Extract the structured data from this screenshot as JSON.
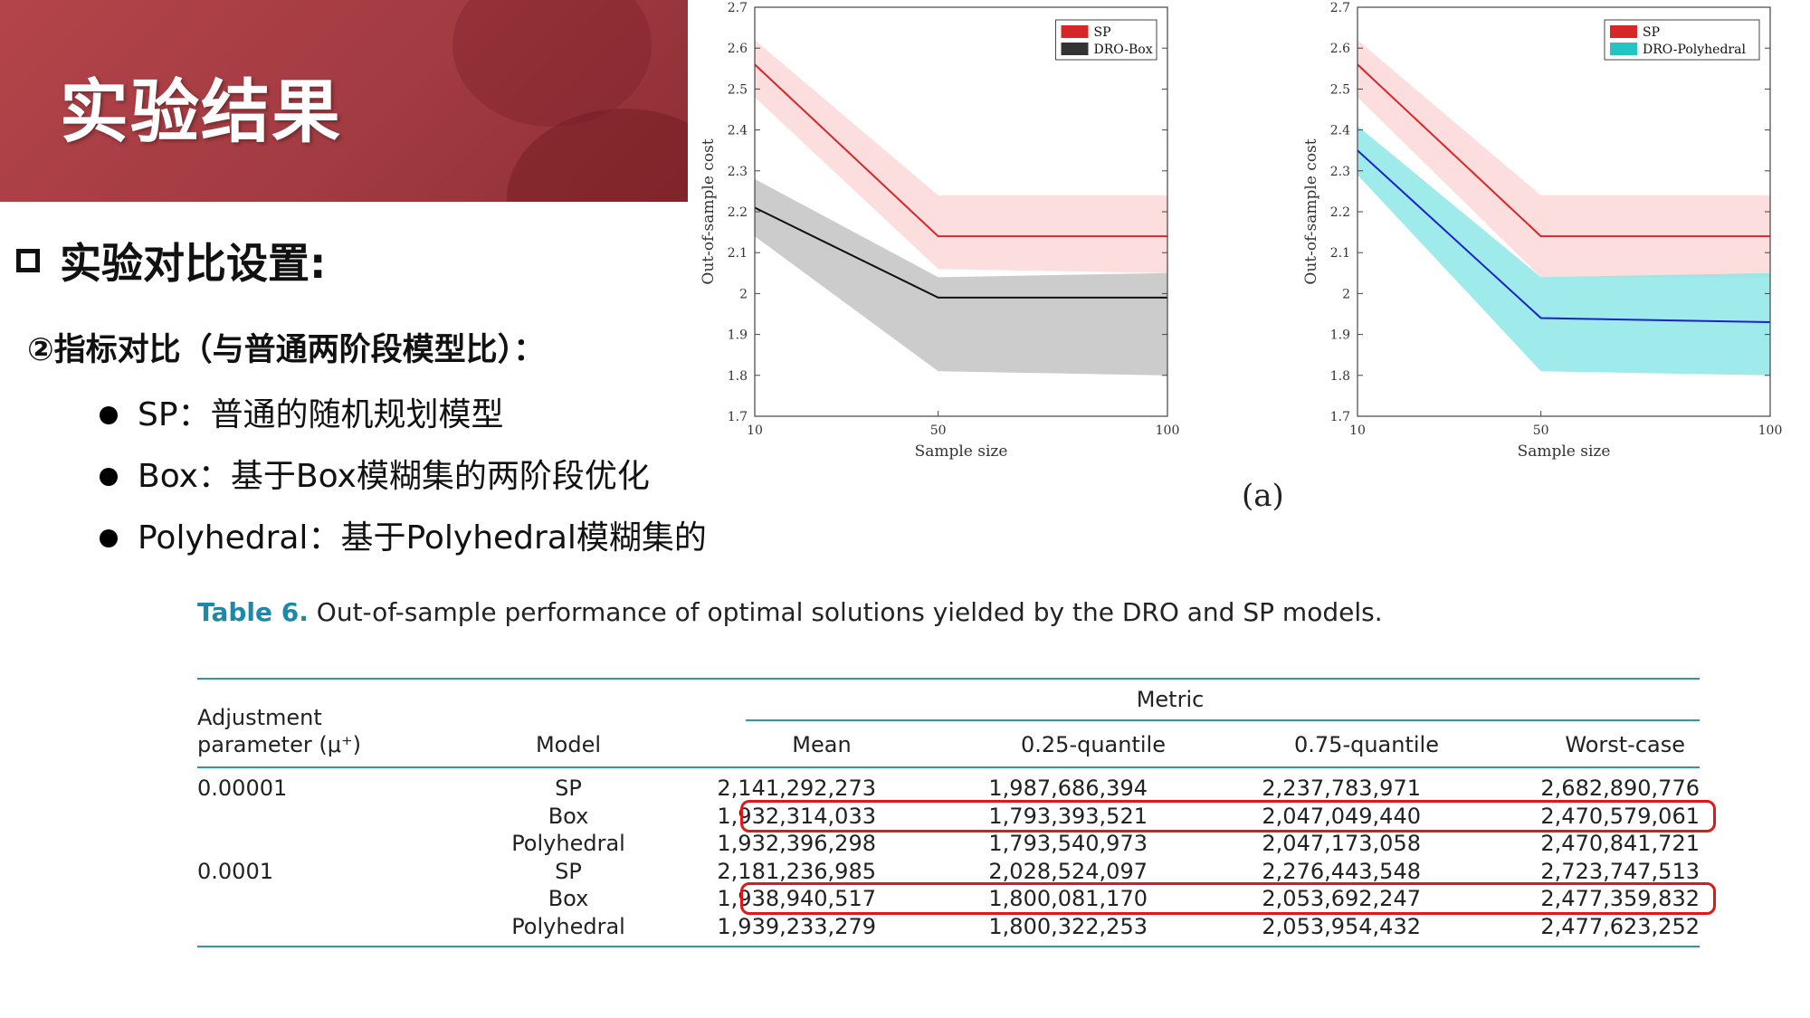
{
  "header": {
    "title": "实验结果"
  },
  "section": {
    "title": "实验对比设置:",
    "subtitle": "②指标对比（与普通两阶段模型比）：",
    "bullets": [
      "SP：普通的随机规划模型",
      "Box：基于Box模糊集的两阶段优化",
      "Polyhedral：基于Polyhedral模糊集的"
    ]
  },
  "figure_caption": "(a)",
  "colors": {
    "banner": "#a63c43",
    "sp_line": "#d62728",
    "sp_band": "#fcdede",
    "box_line": "#111111",
    "box_band": "#c3c3c3",
    "poly_line": "#1a22cc",
    "poly_band": "#8ee6e6",
    "table_rule": "#2a9aa5",
    "highlight": "#e01818"
  },
  "chart_data": [
    {
      "type": "area",
      "xlabel": "Sample size",
      "ylabel": "Out-of-sample cost",
      "x": [
        10,
        50,
        100
      ],
      "xticks": [
        "10",
        "50",
        "100"
      ],
      "yticks": [
        "1.7",
        "1.8",
        "1.9",
        "2",
        "2.1",
        "2.2",
        "2.3",
        "2.4",
        "2.5",
        "2.6",
        "2.7"
      ],
      "ylim": [
        1.7,
        2.7
      ],
      "legend_position": "top-right",
      "series": [
        {
          "name": "SP",
          "mean": [
            2.56,
            2.14,
            2.14
          ],
          "low": [
            2.48,
            2.06,
            2.05
          ],
          "high": [
            2.62,
            2.24,
            2.24
          ],
          "line_color": "#d62728",
          "band_color": "#fcdede"
        },
        {
          "name": "DRO-Box",
          "mean": [
            2.21,
            1.99,
            1.99
          ],
          "low": [
            2.14,
            1.81,
            1.8
          ],
          "high": [
            2.28,
            2.04,
            2.05
          ],
          "line_color": "#111111",
          "band_color": "#c3c3c3"
        }
      ]
    },
    {
      "type": "area",
      "xlabel": "Sample size",
      "ylabel": "Out-of-sample cost",
      "x": [
        10,
        50,
        100
      ],
      "xticks": [
        "10",
        "50",
        "100"
      ],
      "yticks": [
        "1.7",
        "1.8",
        "1.9",
        "2",
        "2.1",
        "2.2",
        "2.3",
        "2.4",
        "2.5",
        "2.6",
        "2.7"
      ],
      "ylim": [
        1.7,
        2.7
      ],
      "legend_position": "top-right",
      "series": [
        {
          "name": "SP",
          "mean": [
            2.56,
            2.14,
            2.14
          ],
          "low": [
            2.48,
            2.04,
            2.04
          ],
          "high": [
            2.62,
            2.24,
            2.24
          ],
          "line_color": "#d62728",
          "band_color": "#fcdede"
        },
        {
          "name": "DRO-Polyhedral",
          "mean": [
            2.35,
            1.94,
            1.93
          ],
          "low": [
            2.29,
            1.81,
            1.8
          ],
          "high": [
            2.41,
            2.04,
            2.05
          ],
          "line_color": "#1a22cc",
          "band_color": "#8ee6e6"
        }
      ]
    }
  ],
  "table": {
    "caption_label": "Table 6.",
    "caption_text": "Out-of-sample performance of optimal solutions yielded by the DRO and SP models.",
    "header_adjust_1": "Adjustment",
    "header_adjust_2": "parameter (μ⁺)",
    "header_model": "Model",
    "header_metric": "Metric",
    "columns": [
      "Mean",
      "0.25-quantile",
      "0.75-quantile",
      "Worst-case"
    ],
    "rows": [
      {
        "param": "0.00001",
        "model": "SP",
        "values": [
          "2,141,292,273",
          "1,987,686,394",
          "2,237,783,971",
          "2,682,890,776"
        ]
      },
      {
        "param": "",
        "model": "Box",
        "values": [
          "1,932,314,033",
          "1,793,393,521",
          "2,047,049,440",
          "2,470,579,061"
        ]
      },
      {
        "param": "",
        "model": "Polyhedral",
        "values": [
          "1,932,396,298",
          "1,793,540,973",
          "2,047,173,058",
          "2,470,841,721"
        ]
      },
      {
        "param": "0.0001",
        "model": "SP",
        "values": [
          "2,181,236,985",
          "2,028,524,097",
          "2,276,443,548",
          "2,723,747,513"
        ]
      },
      {
        "param": "",
        "model": "Box",
        "values": [
          "1,938,940,517",
          "1,800,081,170",
          "2,053,692,247",
          "2,477,359,832"
        ]
      },
      {
        "param": "",
        "model": "Polyhedral",
        "values": [
          "1,939,233,279",
          "1,800,322,253",
          "2,053,954,432",
          "2,477,623,252"
        ]
      }
    ]
  }
}
